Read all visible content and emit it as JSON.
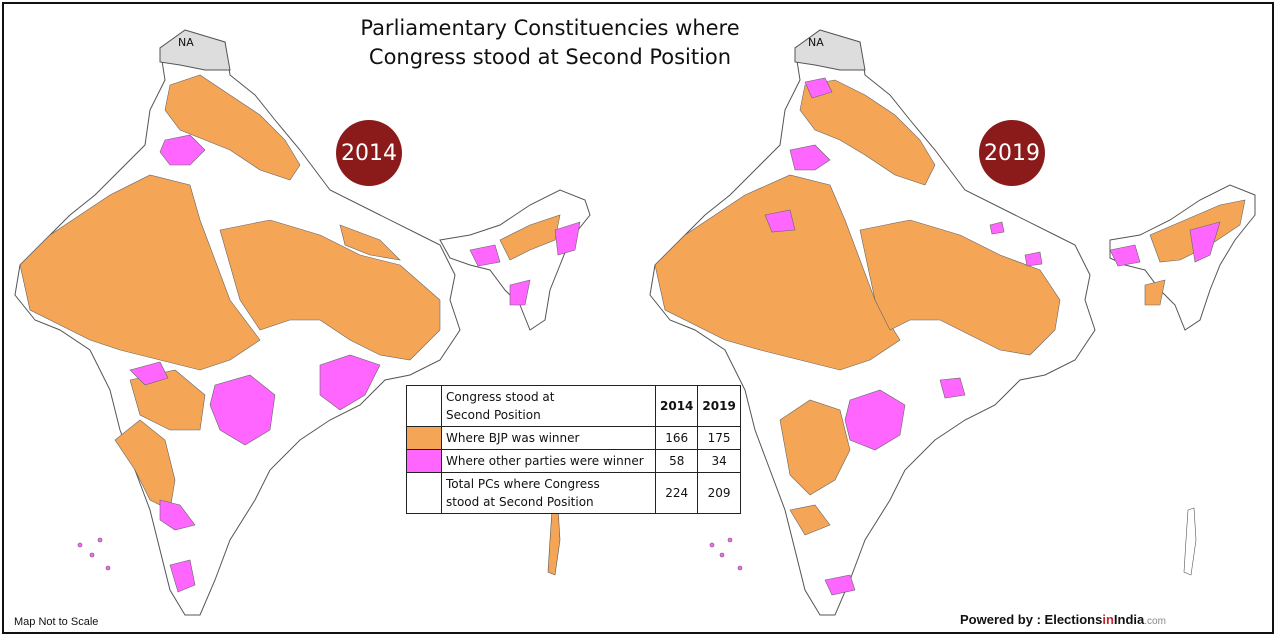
{
  "title_line1": "Parliamentary Constituencies where",
  "title_line2": "Congress stood at Second Position",
  "map_2014": {
    "year": "2014",
    "na_label": "NA"
  },
  "map_2019": {
    "year": "2019",
    "na_label": "NA"
  },
  "legend": {
    "header_line1": "Congress stood at",
    "header_line2": "Second Position",
    "col1": "2014",
    "col2": "2019",
    "rows": [
      {
        "label": "Where BJP was winner",
        "color": "#f5a556",
        "v2014": "166",
        "v2019": "175"
      },
      {
        "label": "Where other parties were winner",
        "color": "#ff66ff",
        "v2014": "58",
        "v2019": "34"
      },
      {
        "label_line1": "Total PCs where Congress",
        "label_line2": "stood at Second Position",
        "color": "#ffffff",
        "v2014": "224",
        "v2019": "209"
      }
    ]
  },
  "footer": {
    "note": "Map Not to Scale",
    "powered_by": "Powered by : ",
    "brand_part1": "Elections",
    "brand_part2": "in",
    "brand_part3": "India",
    "brand_part4": ".com"
  },
  "colors": {
    "bjp": "#f5a556",
    "others": "#ff66ff",
    "na": "#dddddd",
    "badge": "#8b1a1a"
  }
}
